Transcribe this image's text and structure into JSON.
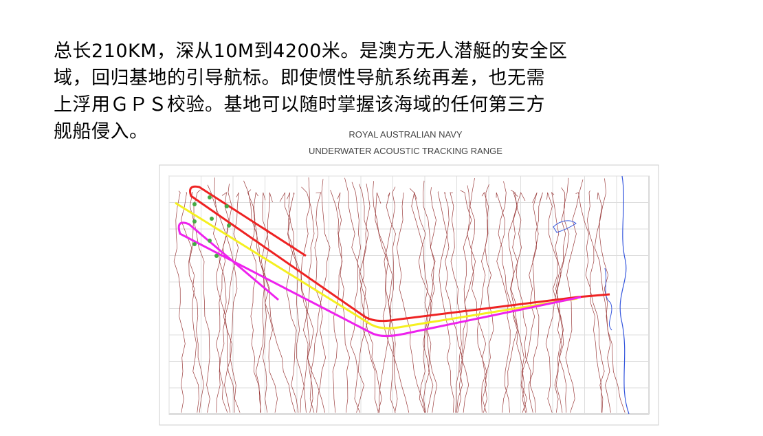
{
  "text": {
    "lines": [
      "总长210KM，深从10M到4200米。是澳方无人潜艇的安全区",
      "域，回归基地的引导航标。即使惯性导航系统再差，也无需",
      "上浮用ＧＰＳ校验。基地可以随时掌握该海域的任何第三方",
      "舰船侵入。"
    ]
  },
  "map": {
    "title": [
      "ROYAL AUSTRALIAN NAVY",
      "UNDERWATER ACOUSTIC TRACKING RANGE"
    ]
  }
}
